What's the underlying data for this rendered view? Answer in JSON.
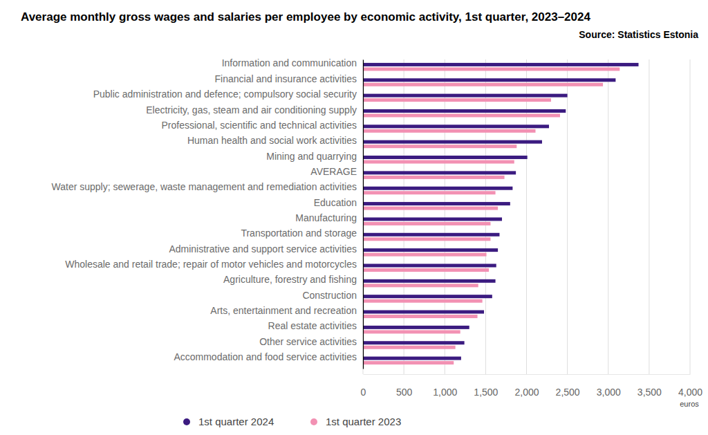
{
  "chart_data": {
    "type": "bar",
    "orientation": "horizontal",
    "title": "Average monthly gross wages and salaries per employee by economic  activity, 1st quarter, 2023–2024",
    "source": "Source: Statistics Estonia",
    "xlabel": "euros",
    "categories": [
      "Information and communication",
      "Financial and insurance activities",
      "Public administration and defence; compulsory social security",
      "Electricity, gas, steam and air conditioning supply",
      "Professional, scientific and technical activities",
      "Human health and social work activities",
      "Mining and quarrying",
      "AVERAGE",
      "Water supply; sewerage, waste management and remediation activities",
      "Education",
      "Manufacturing",
      "Transportation and storage",
      "Administrative and support service activities",
      "Wholesale and retail trade; repair of motor vehicles and motorcycles",
      "Agriculture, forestry and fishing",
      "Construction",
      "Arts, entertainment and recreation",
      "Real estate activities",
      "Other service activities",
      "Accommodation and food service activities"
    ],
    "series": [
      {
        "name": "1st quarter 2024",
        "color": "#3b1b80",
        "values": [
          3370,
          3090,
          2500,
          2480,
          2275,
          2190,
          2010,
          1870,
          1830,
          1800,
          1700,
          1670,
          1650,
          1630,
          1620,
          1580,
          1480,
          1300,
          1240,
          1200
        ]
      },
      {
        "name": "1st quarter 2023",
        "color": "#f291b3",
        "values": [
          3140,
          2935,
          2300,
          2410,
          2110,
          1880,
          1850,
          1730,
          1620,
          1650,
          1560,
          1560,
          1510,
          1540,
          1410,
          1460,
          1400,
          1190,
          1130,
          1110
        ]
      }
    ],
    "xlim": [
      0,
      4000
    ],
    "xticks": [
      0,
      500,
      {
        "value": 1000,
        "label": "1,000"
      },
      {
        "value": 1500,
        "label": "1,500"
      },
      {
        "value": 2000,
        "label": "2,000"
      },
      {
        "value": 2500,
        "label": "2,500"
      },
      {
        "value": 3000,
        "label": "3,000"
      },
      {
        "value": 3500,
        "label": "3,500"
      },
      {
        "value": 4000,
        "label": "4,000"
      }
    ],
    "grid": true,
    "legend": "bottom"
  }
}
